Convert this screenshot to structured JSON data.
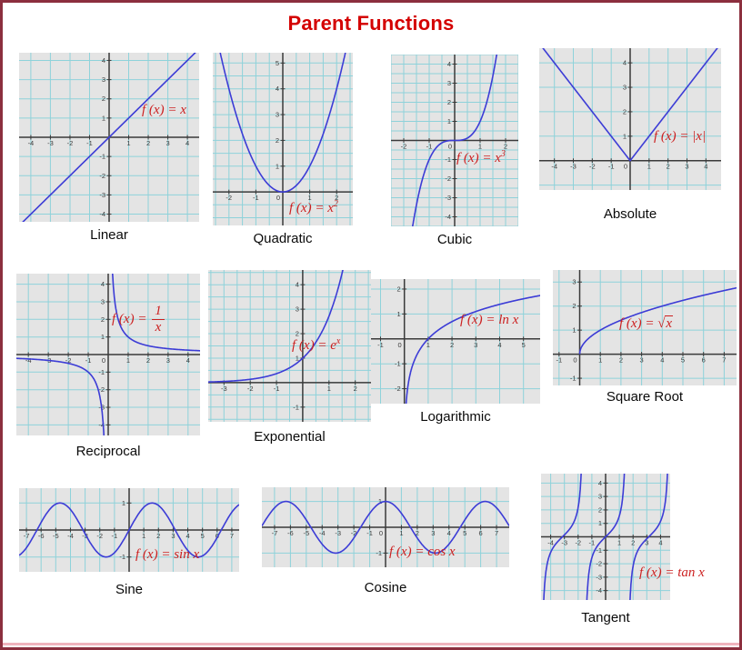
{
  "title": "Parent Functions",
  "colors": {
    "title": "#d40000",
    "formula": "#cc2020",
    "curve": "#3c3cd6",
    "grid": "#8ed2da",
    "axis": "#3a3a3a",
    "panel_bg": "#e4e4e4",
    "border": "#8c2f3e",
    "caption": "#0a0a0a"
  },
  "chart_data": [
    {
      "name": "linear",
      "caption": "Linear",
      "type": "line",
      "fn": "x",
      "formula": {
        "prefix": "f (x) = ",
        "main": "x"
      },
      "x_range": [
        -4.6,
        4.6
      ],
      "y_range": [
        -4.4,
        4.4
      ],
      "x_ticks": [
        -4,
        -3,
        -2,
        -1,
        1,
        2,
        3,
        4
      ],
      "y_ticks": [
        -4,
        -3,
        -2,
        -1,
        1,
        2,
        3,
        4
      ],
      "grid_step": 1
    },
    {
      "name": "quadratic",
      "caption": "Quadratic",
      "type": "line",
      "fn": "x^2",
      "formula": {
        "prefix": "f (x) = ",
        "main": "x",
        "sup": "2"
      },
      "x_range": [
        -2.6,
        2.6
      ],
      "y_range": [
        -1.3,
        5.4
      ],
      "x_ticks": [
        -2,
        -1,
        0,
        1,
        2
      ],
      "y_ticks": [
        1,
        2,
        3,
        4,
        5
      ],
      "grid_step": 0.5
    },
    {
      "name": "cubic",
      "caption": "Cubic",
      "type": "line",
      "fn": "x^3",
      "formula": {
        "prefix": "f (x) = ",
        "main": "x",
        "sup": "3"
      },
      "x_range": [
        -2.5,
        2.5
      ],
      "y_range": [
        -4.5,
        4.5
      ],
      "x_ticks": [
        -2,
        -1,
        0,
        1,
        2
      ],
      "y_ticks": [
        -4,
        -3,
        -2,
        -1,
        1,
        2,
        3,
        4
      ],
      "grid_step": 0.5
    },
    {
      "name": "absolute",
      "caption": "Absolute",
      "type": "line",
      "fn": "|x|",
      "formula": {
        "prefix": "f (x) = ",
        "main": "|x|"
      },
      "x_range": [
        -4.8,
        4.8
      ],
      "y_range": [
        -1.2,
        4.6
      ],
      "x_ticks": [
        -4,
        -3,
        -2,
        -1,
        0,
        1,
        2,
        3,
        4
      ],
      "y_ticks": [
        1,
        2,
        3,
        4
      ],
      "grid_step": 1
    },
    {
      "name": "reciprocal",
      "caption": "Reciprocal",
      "type": "line",
      "fn": "1/x",
      "formula": {
        "prefix": "f (x) = ",
        "frac": {
          "num": "1",
          "den": "x"
        }
      },
      "x_range": [
        -4.6,
        4.6
      ],
      "y_range": [
        -4.6,
        4.6
      ],
      "x_ticks": [
        -4,
        -3,
        -2,
        -1,
        0,
        1,
        2,
        3,
        4
      ],
      "y_ticks": [
        -4,
        -3,
        -2,
        -1,
        1,
        2,
        3,
        4
      ],
      "grid_step": 1
    },
    {
      "name": "exponential",
      "caption": "Exponential",
      "type": "line",
      "fn": "e^x",
      "formula": {
        "prefix": "f (x) = ",
        "main": "e",
        "sup": "x"
      },
      "x_range": [
        -3.6,
        2.6
      ],
      "y_range": [
        -1.6,
        4.6
      ],
      "x_ticks": [
        -3,
        -2,
        -1,
        1,
        2
      ],
      "y_ticks": [
        -1,
        1,
        2,
        3,
        4
      ],
      "grid_step": 0.5
    },
    {
      "name": "logarithmic",
      "caption": "Logarithmic",
      "type": "line",
      "fn": "ln x",
      "formula": {
        "prefix": "f (x) = ",
        "main": "ln x"
      },
      "x_range": [
        -1.4,
        5.7
      ],
      "y_range": [
        -2.6,
        2.4
      ],
      "x_ticks": [
        -1,
        0,
        1,
        2,
        3,
        4,
        5
      ],
      "y_ticks": [
        -2,
        -1,
        1,
        2
      ],
      "grid_step": 1
    },
    {
      "name": "square-root",
      "caption": "Square Root",
      "type": "line",
      "fn": "sqrt x",
      "formula": {
        "prefix": "f (x) = ",
        "sqrt": "x"
      },
      "x_range": [
        -1.3,
        7.6
      ],
      "y_range": [
        -1.3,
        3.5
      ],
      "x_ticks": [
        -1,
        0,
        1,
        2,
        3,
        4,
        5,
        6,
        7
      ],
      "y_ticks": [
        -1,
        1,
        2,
        3
      ],
      "grid_step": 1
    },
    {
      "name": "sine",
      "caption": "Sine",
      "type": "line",
      "fn": "sin x",
      "formula": {
        "prefix": "f (x) = ",
        "main": "sin x"
      },
      "x_range": [
        -7.5,
        7.5
      ],
      "y_range": [
        -1.55,
        1.55
      ],
      "x_ticks": [
        -7,
        -6,
        -5,
        -4,
        -3,
        -2,
        -1,
        1,
        2,
        3,
        4,
        5,
        6,
        7
      ],
      "y_ticks": [
        1,
        -1
      ],
      "grid_step": 1
    },
    {
      "name": "cosine",
      "caption": "Cosine",
      "type": "line",
      "fn": "cos x",
      "formula": {
        "prefix": "f (x) = ",
        "main": "cos x"
      },
      "x_range": [
        -7.8,
        7.8
      ],
      "y_range": [
        -1.55,
        1.55
      ],
      "x_ticks": [
        -7,
        -6,
        -5,
        -4,
        -3,
        -2,
        -1,
        0,
        1,
        2,
        3,
        4,
        5,
        6,
        7
      ],
      "y_ticks": [
        1,
        -1
      ],
      "grid_step": 1
    },
    {
      "name": "tangent",
      "caption": "Tangent",
      "type": "line",
      "fn": "tan x",
      "formula": {
        "prefix": "f (x) = ",
        "main": "tan x"
      },
      "x_range": [
        -4.7,
        4.7
      ],
      "y_range": [
        -4.7,
        4.7
      ],
      "x_ticks": [
        -4,
        -3,
        -2,
        -1,
        1,
        2,
        3,
        4
      ],
      "y_ticks": [
        -4,
        -3,
        -2,
        -1,
        1,
        2,
        3,
        4
      ],
      "grid_step": 1
    }
  ]
}
